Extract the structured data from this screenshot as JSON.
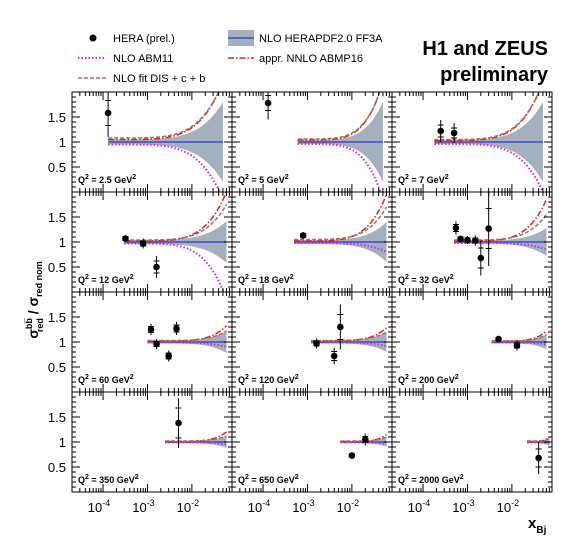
{
  "title_line1": "H1 and ZEUS",
  "title_line2": "preliminary",
  "legend": [
    {
      "label": "HERA (prel.)",
      "kind": "marker",
      "color": "#000000"
    },
    {
      "label": "NLO HERAPDF2.0 FF3A",
      "kind": "band",
      "color": "#a3b0c0",
      "line": "#3a4ad0"
    },
    {
      "label": "NLO ABM11",
      "kind": "dotted",
      "color": "#e020e0"
    },
    {
      "label": "appr. NNLO ABMP16",
      "kind": "dashdot",
      "color": "#e02020"
    },
    {
      "label": "NLO fit DIS + c + b",
      "kind": "dashed",
      "color": "#a07060"
    }
  ],
  "yaxis": {
    "label_main": "σ",
    "label_sup": "bb̅",
    "label_sub": "red",
    "label_sep": " / σ",
    "label_sub2": "red nom"
  },
  "xaxis": {
    "label_main": "x",
    "label_sub": "Bj"
  },
  "xticks": [
    {
      "v": 0.0001,
      "base": "10",
      "exp": "-4"
    },
    {
      "v": 0.001,
      "base": "10",
      "exp": "-3"
    },
    {
      "v": 0.01,
      "base": "10",
      "exp": "-2"
    }
  ],
  "yticks": [
    {
      "v": 0.5,
      "label": "0.5"
    },
    {
      "v": 1,
      "label": "1"
    },
    {
      "v": 1.5,
      "label": "1.5"
    }
  ],
  "colors": {
    "band": "#a3b0c0",
    "central": "#3a4ad0",
    "abm11": "#e020e0",
    "abmp16": "#e02020",
    "fitcb": "#a07060",
    "data": "#000000"
  },
  "chart_data": {
    "type": "scatter",
    "grid": false,
    "legend_position": "top",
    "xscale": "log",
    "xlim": [
      2e-05,
      0.08
    ],
    "ylim": [
      0,
      2
    ],
    "panels": [
      {
        "q2_prefix": "Q",
        "q2_sup": "2",
        "q2_mid": " = 2.5 GeV",
        "q2_sup2": "2",
        "points": [
          {
            "x": 0.00013,
            "y": 1.58,
            "err_tot": 0.48,
            "err_stat": 0.25
          }
        ],
        "band": {
          "x_from": 0.00013,
          "x_to": 0.05,
          "w": 0.05,
          "w_end": 0.8
        },
        "abm11": {
          "x_from": 0.00013,
          "x_to": 0.05,
          "y_start": 0.95,
          "y_end": -0.15
        },
        "abmp16": {
          "x_from": 0.00013,
          "x_to": 0.05,
          "y_start": 1.05,
          "y_end": 2.2
        },
        "fitcb": {
          "x_from": 0.00013,
          "x_to": 0.05,
          "y_start": 1.08,
          "y_end": 2.2
        }
      },
      {
        "q2_prefix": "Q",
        "q2_sup": "2",
        "q2_mid": " = 5 GeV",
        "q2_sup2": "2",
        "points": [
          {
            "x": 0.00013,
            "y": 1.78,
            "err_tot": 0.33,
            "err_stat": 0.15
          }
        ],
        "band": {
          "x_from": 0.0006,
          "x_to": 0.05,
          "w": 0.04,
          "w_end": 0.8
        },
        "abm11": {
          "x_from": 0.0006,
          "x_to": 0.05,
          "y_start": 0.96,
          "y_end": -0.15
        },
        "abmp16": {
          "x_from": 0.0006,
          "x_to": 0.05,
          "y_start": 1.04,
          "y_end": 2.2
        },
        "fitcb": {
          "x_from": 0.0006,
          "x_to": 0.05,
          "y_start": 1.06,
          "y_end": 2.2
        }
      },
      {
        "q2_prefix": "Q",
        "q2_sup": "2",
        "q2_mid": " = 7 GeV",
        "q2_sup2": "2",
        "points": [
          {
            "x": 0.00025,
            "y": 1.22,
            "err_tot": 0.22,
            "err_stat": 0.12
          },
          {
            "x": 0.0005,
            "y": 1.18,
            "err_tot": 0.2,
            "err_stat": 0.1
          }
        ],
        "band": {
          "x_from": 0.00018,
          "x_to": 0.05,
          "w": 0.04,
          "w_end": 0.8
        },
        "abm11": {
          "x_from": 0.00018,
          "x_to": 0.05,
          "y_start": 0.96,
          "y_end": 0.0
        },
        "abmp16": {
          "x_from": 0.00018,
          "x_to": 0.05,
          "y_start": 1.03,
          "y_end": 2.2
        },
        "fitcb": {
          "x_from": 0.00018,
          "x_to": 0.05,
          "y_start": 1.05,
          "y_end": 2.2
        }
      },
      {
        "q2_prefix": "Q",
        "q2_sup": "2",
        "q2_mid": " = 12 GeV",
        "q2_sup2": "2",
        "points": [
          {
            "x": 0.00032,
            "y": 1.07,
            "err_tot": 0.06,
            "err_stat": 0.04
          },
          {
            "x": 0.0008,
            "y": 0.97,
            "err_tot": 0.1,
            "err_stat": 0.05
          },
          {
            "x": 0.0016,
            "y": 0.5,
            "err_tot": 0.22,
            "err_stat": 0.12
          }
        ],
        "band": {
          "x_from": 0.0003,
          "x_to": 0.06,
          "w": 0.04,
          "w_end": 0.42
        },
        "abm11": {
          "x_from": 0.0003,
          "x_to": 0.06,
          "y_start": 0.97,
          "y_end": -0.15
        },
        "abmp16": {
          "x_from": 0.0003,
          "x_to": 0.06,
          "y_start": 1.02,
          "y_end": 2.0
        },
        "fitcb": {
          "x_from": 0.0003,
          "x_to": 0.06,
          "y_start": 1.04,
          "y_end": 1.75
        }
      },
      {
        "q2_prefix": "Q",
        "q2_sup": "2",
        "q2_mid": " = 18 GeV",
        "q2_sup2": "2",
        "points": [
          {
            "x": 0.0008,
            "y": 1.13,
            "err_tot": 0.07,
            "err_stat": 0.04
          }
        ],
        "band": {
          "x_from": 0.0005,
          "x_to": 0.06,
          "w": 0.04,
          "w_end": 0.4
        },
        "abm11": {
          "x_from": 0.0005,
          "x_to": 0.06,
          "y_start": 0.98,
          "y_end": 0.8
        },
        "abmp16": {
          "x_from": 0.0005,
          "x_to": 0.06,
          "y_start": 1.02,
          "y_end": 1.95
        },
        "fitcb": {
          "x_from": 0.0005,
          "x_to": 0.06,
          "y_start": 1.05,
          "y_end": 1.7
        }
      },
      {
        "q2_prefix": "Q",
        "q2_sup": "2",
        "q2_mid": " = 32 GeV",
        "q2_sup2": "2",
        "points": [
          {
            "x": 0.00055,
            "y": 1.28,
            "err_tot": 0.13,
            "err_stat": 0.07
          },
          {
            "x": 0.0007,
            "y": 1.06,
            "err_tot": 0.07,
            "err_stat": 0.04
          },
          {
            "x": 0.001,
            "y": 1.04,
            "err_tot": 0.08,
            "err_stat": 0.04
          },
          {
            "x": 0.0015,
            "y": 1.03,
            "err_tot": 0.1,
            "err_stat": 0.05
          },
          {
            "x": 0.002,
            "y": 0.68,
            "err_tot": 0.35,
            "err_stat": 0.2
          },
          {
            "x": 0.003,
            "y": 1.27,
            "err_tot": 0.75,
            "err_stat": 0.4
          }
        ],
        "band": {
          "x_from": 0.0005,
          "x_to": 0.06,
          "w": 0.03,
          "w_end": 0.28
        },
        "abm11": {
          "x_from": 0.0005,
          "x_to": 0.06,
          "y_start": 0.98,
          "y_end": 0.85
        },
        "abmp16": {
          "x_from": 0.0005,
          "x_to": 0.06,
          "y_start": 1.02,
          "y_end": 1.85
        },
        "fitcb": {
          "x_from": 0.0005,
          "x_to": 0.06,
          "y_start": 1.04,
          "y_end": 1.55
        }
      },
      {
        "q2_prefix": "Q",
        "q2_sup": "2",
        "q2_mid": " = 60 GeV",
        "q2_sup2": "2",
        "points": [
          {
            "x": 0.0012,
            "y": 1.25,
            "err_tot": 0.11,
            "err_stat": 0.06
          },
          {
            "x": 0.0016,
            "y": 0.96,
            "err_tot": 0.1,
            "err_stat": 0.05
          },
          {
            "x": 0.003,
            "y": 0.72,
            "err_tot": 0.11,
            "err_stat": 0.06
          },
          {
            "x": 0.0045,
            "y": 1.27,
            "err_tot": 0.13,
            "err_stat": 0.07
          }
        ],
        "band": {
          "x_from": 0.001,
          "x_to": 0.06,
          "w": 0.03,
          "w_end": 0.22
        },
        "abm11": {
          "x_from": 0.001,
          "x_to": 0.06,
          "y_start": 0.99,
          "y_end": 0.9
        },
        "abmp16": {
          "x_from": 0.001,
          "x_to": 0.06,
          "y_start": 1.02,
          "y_end": 1.32
        },
        "fitcb": {
          "x_from": 0.001,
          "x_to": 0.06,
          "y_start": 1.03,
          "y_end": 1.22
        }
      },
      {
        "q2_prefix": "Q",
        "q2_sup": "2",
        "q2_mid": " = 120 GeV",
        "q2_sup2": "2",
        "points": [
          {
            "x": 0.0016,
            "y": 0.97,
            "err_tot": 0.1,
            "err_stat": 0.05
          },
          {
            "x": 0.004,
            "y": 0.72,
            "err_tot": 0.17,
            "err_stat": 0.09
          },
          {
            "x": 0.0055,
            "y": 1.3,
            "err_tot": 0.45,
            "err_stat": 0.25
          }
        ],
        "band": {
          "x_from": 0.0012,
          "x_to": 0.06,
          "w": 0.03,
          "w_end": 0.2
        },
        "abm11": {
          "x_from": 0.0012,
          "x_to": 0.06,
          "y_start": 0.99,
          "y_end": 0.92
        },
        "abmp16": {
          "x_from": 0.0012,
          "x_to": 0.06,
          "y_start": 1.02,
          "y_end": 1.28
        },
        "fitcb": {
          "x_from": 0.0012,
          "x_to": 0.06,
          "y_start": 1.03,
          "y_end": 1.2
        }
      },
      {
        "q2_prefix": "Q",
        "q2_sup": "2",
        "q2_mid": " = 200 GeV",
        "q2_sup2": "2",
        "points": [
          {
            "x": 0.005,
            "y": 1.06,
            "err_tot": 0.05,
            "err_stat": 0.03
          },
          {
            "x": 0.013,
            "y": 0.93,
            "err_tot": 0.1,
            "err_stat": 0.05
          }
        ],
        "band": {
          "x_from": 0.0035,
          "x_to": 0.06,
          "w": 0.03,
          "w_end": 0.15
        },
        "abm11": {
          "x_from": 0.0035,
          "x_to": 0.06,
          "y_start": 0.99,
          "y_end": 0.95
        },
        "abmp16": {
          "x_from": 0.0035,
          "x_to": 0.06,
          "y_start": 1.02,
          "y_end": 1.22
        },
        "fitcb": {
          "x_from": 0.0035,
          "x_to": 0.06,
          "y_start": 1.02,
          "y_end": 1.15
        }
      },
      {
        "q2_prefix": "Q",
        "q2_sup": "2",
        "q2_mid": " = 350 GeV",
        "q2_sup2": "2",
        "points": [
          {
            "x": 0.005,
            "y": 1.38,
            "err_tot": 0.5,
            "err_stat": 0.3
          }
        ],
        "band": {
          "x_from": 0.0025,
          "x_to": 0.06,
          "w": 0.02,
          "w_end": 0.12
        },
        "abm11": {
          "x_from": 0.0025,
          "x_to": 0.06,
          "y_start": 0.99,
          "y_end": 0.95
        },
        "abmp16": {
          "x_from": 0.0025,
          "x_to": 0.06,
          "y_start": 1.01,
          "y_end": 1.2
        },
        "fitcb": {
          "x_from": 0.0025,
          "x_to": 0.06,
          "y_start": 1.02,
          "y_end": 1.12
        }
      },
      {
        "q2_prefix": "Q",
        "q2_sup": "2",
        "q2_mid": " = 650 GeV",
        "q2_sup2": "2",
        "points": [
          {
            "x": 0.01,
            "y": 0.73,
            "err_tot": 0.06,
            "err_stat": 0.03
          },
          {
            "x": 0.02,
            "y": 1.05,
            "err_tot": 0.12,
            "err_stat": 0.06
          }
        ],
        "band": {
          "x_from": 0.0055,
          "x_to": 0.06,
          "w": 0.02,
          "w_end": 0.1
        },
        "abm11": {
          "x_from": 0.0055,
          "x_to": 0.06,
          "y_start": 0.99,
          "y_end": 0.96
        },
        "abmp16": {
          "x_from": 0.0055,
          "x_to": 0.06,
          "y_start": 1.01,
          "y_end": 1.15
        },
        "fitcb": {
          "x_from": 0.0055,
          "x_to": 0.06,
          "y_start": 1.02,
          "y_end": 1.1
        }
      },
      {
        "q2_prefix": "Q",
        "q2_sup": "2",
        "q2_mid": " = 2000 GeV",
        "q2_sup2": "2",
        "points": [
          {
            "x": 0.04,
            "y": 0.68,
            "err_tot": 0.32,
            "err_stat": 0.18
          }
        ],
        "band": {
          "x_from": 0.022,
          "x_to": 0.07,
          "w": 0.02,
          "w_end": 0.08
        },
        "abm11": {
          "x_from": 0.022,
          "x_to": 0.07,
          "y_start": 0.99,
          "y_end": 0.97
        },
        "abmp16": {
          "x_from": 0.022,
          "x_to": 0.07,
          "y_start": 1.01,
          "y_end": 1.1
        },
        "fitcb": {
          "x_from": 0.022,
          "x_to": 0.07,
          "y_start": 1.02,
          "y_end": 1.07
        }
      }
    ]
  }
}
